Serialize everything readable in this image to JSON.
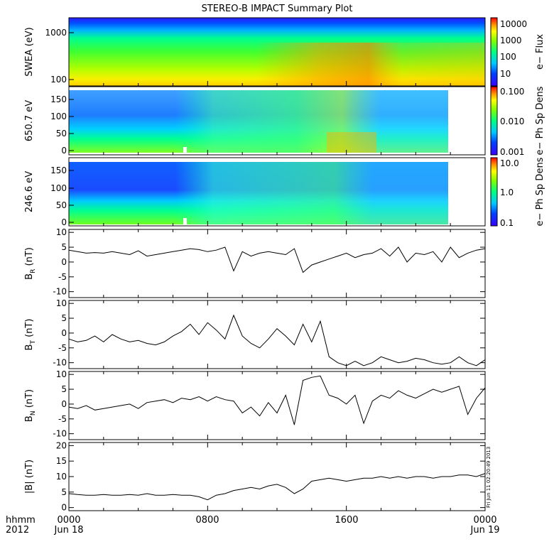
{
  "title": "STEREO-B IMPACT Summary Plot",
  "footer": {
    "left_top": "hhmm",
    "left_bottom": "2012",
    "xticks": [
      "0000",
      "0800",
      "1600",
      "0000"
    ],
    "xdates": [
      "Jun 18",
      "Jun 19"
    ],
    "timestamp": "Fri Jun 11 02:20:49 2013"
  },
  "colors": {
    "background": "#ffffff",
    "axis": "#000000"
  },
  "chart_data": [
    {
      "type": "heatmap",
      "ylabel": "SWEA (eV)",
      "yscale": "log",
      "yticks": [
        "1000",
        "100"
      ],
      "colorbar": {
        "label": "e− Flux",
        "scale": "log",
        "ticks": [
          "10000",
          "1000",
          "100",
          "10"
        ]
      },
      "xlim": [
        0,
        24
      ]
    },
    {
      "type": "heatmap",
      "ylabel": "650.7 eV",
      "yticks": [
        "150",
        "100",
        "50",
        "0"
      ],
      "ylim": [
        0,
        180
      ],
      "colorbar": {
        "label": "e− Ph Sp Dens",
        "scale": "log",
        "ticks": [
          "0.100",
          "0.010",
          "0.001"
        ]
      },
      "xlim": [
        0,
        24
      ]
    },
    {
      "type": "heatmap",
      "ylabel": "246.6 eV",
      "yticks": [
        "150",
        "100",
        "50",
        "0"
      ],
      "ylim": [
        0,
        180
      ],
      "colorbar": {
        "label": "e− Ph Sp Dens",
        "scale": "log",
        "ticks": [
          "10.0",
          "1.0",
          "0.1"
        ]
      },
      "xlim": [
        0,
        24
      ]
    },
    {
      "type": "line",
      "ylabel_main": "B",
      "ylabel_sub": "R",
      "ylabel_unit": "(nT)",
      "ylim": [
        -12,
        11
      ],
      "yticks": [
        "10",
        "5",
        "0",
        "-5",
        "-10"
      ],
      "x": [
        0.0,
        0.5,
        1.0,
        1.5,
        2.0,
        2.5,
        3.0,
        3.5,
        4.0,
        4.5,
        5.0,
        5.5,
        6.0,
        6.5,
        7.0,
        7.5,
        8.0,
        8.5,
        9.0,
        9.5,
        10.0,
        10.5,
        11.0,
        11.5,
        12.0,
        12.5,
        13.0,
        13.5,
        14.0,
        14.5,
        15.0,
        15.5,
        16.0,
        16.5,
        17.0,
        17.5,
        18.0,
        18.5,
        19.0,
        19.5,
        20.0,
        20.5,
        21.0,
        21.5,
        22.0,
        22.5,
        23.0,
        23.5,
        24.0
      ],
      "values": [
        4.0,
        3.5,
        3.0,
        3.2,
        3.0,
        3.5,
        3.0,
        2.5,
        3.8,
        2.0,
        2.5,
        3.0,
        3.5,
        4.0,
        4.5,
        4.2,
        3.5,
        4.0,
        5.0,
        -3.0,
        3.5,
        2.0,
        3.0,
        3.5,
        3.0,
        2.5,
        4.5,
        -3.5,
        -1.0,
        0.0,
        1.0,
        2.0,
        3.0,
        1.5,
        2.5,
        3.0,
        4.5,
        2.0,
        5.0,
        0.0,
        3.0,
        2.5,
        3.5,
        0.0,
        5.0,
        1.5,
        3.0,
        4.0,
        4.5
      ]
    },
    {
      "type": "line",
      "ylabel_main": "B",
      "ylabel_sub": "T",
      "ylabel_unit": "(nT)",
      "ylim": [
        -12,
        11
      ],
      "yticks": [
        "10",
        "5",
        "0",
        "-5",
        "-10"
      ],
      "x": [
        0.0,
        0.5,
        1.0,
        1.5,
        2.0,
        2.5,
        3.0,
        3.5,
        4.0,
        4.5,
        5.0,
        5.5,
        6.0,
        6.5,
        7.0,
        7.5,
        8.0,
        8.5,
        9.0,
        9.5,
        10.0,
        10.5,
        11.0,
        11.5,
        12.0,
        12.5,
        13.0,
        13.5,
        14.0,
        14.5,
        15.0,
        15.5,
        16.0,
        16.5,
        17.0,
        17.5,
        18.0,
        18.5,
        19.0,
        19.5,
        20.0,
        20.5,
        21.0,
        21.5,
        22.0,
        22.5,
        23.0,
        23.5,
        24.0
      ],
      "values": [
        -2.0,
        -3.0,
        -2.5,
        -1.0,
        -3.0,
        -0.5,
        -2.0,
        -3.0,
        -2.5,
        -3.5,
        -4.0,
        -3.0,
        -1.0,
        0.5,
        3.0,
        -0.5,
        3.5,
        1.0,
        -2.0,
        6.0,
        -1.0,
        -3.5,
        -5.0,
        -2.0,
        1.5,
        -1.0,
        -4.0,
        3.0,
        -3.0,
        4.0,
        -8.0,
        -10.0,
        -11.0,
        -9.5,
        -11.0,
        -10.0,
        -8.0,
        -9.0,
        -10.0,
        -9.5,
        -8.5,
        -9.0,
        -10.0,
        -10.5,
        -10.0,
        -8.0,
        -10.0,
        -11.0,
        -9.0
      ]
    },
    {
      "type": "line",
      "ylabel_main": "B",
      "ylabel_sub": "N",
      "ylabel_unit": "(nT)",
      "ylim": [
        -12,
        11
      ],
      "yticks": [
        "10",
        "5",
        "0",
        "-5",
        "-10"
      ],
      "x": [
        0.0,
        0.5,
        1.0,
        1.5,
        2.0,
        2.5,
        3.0,
        3.5,
        4.0,
        4.5,
        5.0,
        5.5,
        6.0,
        6.5,
        7.0,
        7.5,
        8.0,
        8.5,
        9.0,
        9.5,
        10.0,
        10.5,
        11.0,
        11.5,
        12.0,
        12.5,
        13.0,
        13.5,
        14.0,
        14.5,
        15.0,
        15.5,
        16.0,
        16.5,
        17.0,
        17.5,
        18.0,
        18.5,
        19.0,
        19.5,
        20.0,
        20.5,
        21.0,
        21.5,
        22.0,
        22.5,
        23.0,
        23.5,
        24.0
      ],
      "values": [
        -1.0,
        -1.5,
        -0.5,
        -2.0,
        -1.5,
        -1.0,
        -0.5,
        0.0,
        -1.5,
        0.5,
        1.0,
        1.5,
        0.5,
        2.0,
        1.5,
        2.5,
        1.0,
        2.5,
        1.5,
        1.0,
        -3.0,
        -1.0,
        -4.0,
        0.5,
        -3.0,
        3.0,
        -7.0,
        8.0,
        9.0,
        9.5,
        3.0,
        2.0,
        0.0,
        3.0,
        -6.5,
        1.0,
        3.0,
        2.0,
        4.5,
        3.0,
        2.0,
        3.5,
        5.0,
        4.0,
        5.0,
        6.0,
        -3.5,
        2.0,
        5.5
      ]
    },
    {
      "type": "line",
      "ylabel_main": "|B|",
      "ylabel_sub": "",
      "ylabel_unit": "(nT)",
      "ylim": [
        -1,
        21
      ],
      "yticks": [
        "20",
        "15",
        "10",
        "5",
        "0"
      ],
      "x": [
        0.0,
        0.5,
        1.0,
        1.5,
        2.0,
        2.5,
        3.0,
        3.5,
        4.0,
        4.5,
        5.0,
        5.5,
        6.0,
        6.5,
        7.0,
        7.5,
        8.0,
        8.5,
        9.0,
        9.5,
        10.0,
        10.5,
        11.0,
        11.5,
        12.0,
        12.5,
        13.0,
        13.5,
        14.0,
        14.5,
        15.0,
        15.5,
        16.0,
        16.5,
        17.0,
        17.5,
        18.0,
        18.5,
        19.0,
        19.5,
        20.0,
        20.5,
        21.0,
        21.5,
        22.0,
        22.5,
        23.0,
        23.5,
        24.0
      ],
      "values": [
        4.5,
        4.2,
        4.0,
        4.0,
        4.2,
        4.0,
        4.0,
        4.2,
        4.0,
        4.5,
        4.0,
        4.0,
        4.2,
        4.0,
        4.0,
        3.5,
        2.5,
        4.0,
        4.5,
        5.5,
        6.0,
        6.5,
        6.0,
        7.0,
        7.5,
        6.5,
        4.5,
        6.0,
        8.5,
        9.0,
        9.5,
        9.0,
        8.5,
        9.0,
        9.5,
        9.5,
        10.0,
        9.5,
        10.0,
        9.5,
        10.0,
        10.0,
        9.5,
        10.0,
        10.0,
        10.5,
        10.5,
        10.0,
        11.0
      ]
    }
  ]
}
